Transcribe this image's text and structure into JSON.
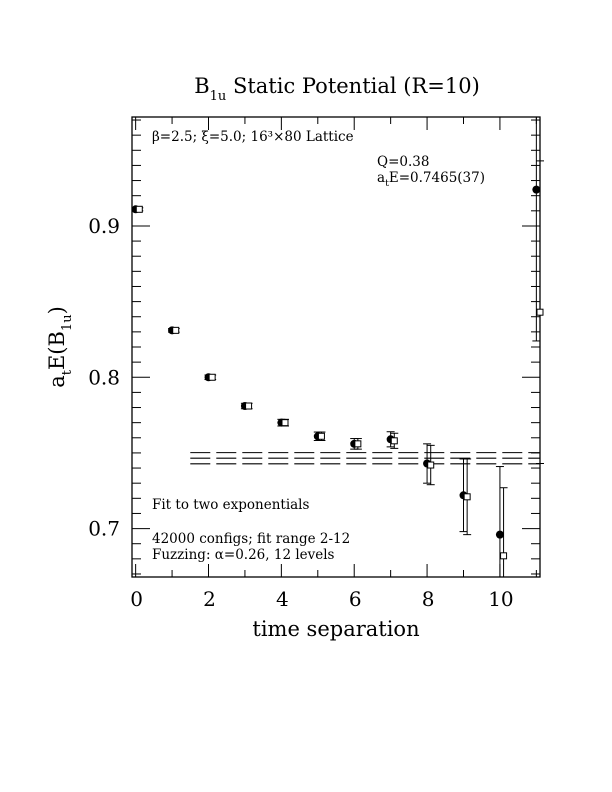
{
  "chart_data": {
    "type": "scatter",
    "title": "B",
    "title_sub": "1u",
    "title_rest": " Static Potential (R=10)",
    "xlabel": "time separation",
    "ylabel_main": "a",
    "ylabel_sub_t": "t",
    "ylabel_mid": "E(B",
    "ylabel_sub_1u": "1u",
    "ylabel_end": ")",
    "xlim": [
      -0.1,
      11.1
    ],
    "ylim": [
      0.668,
      0.972
    ],
    "x_ticks": [
      0,
      2,
      4,
      6,
      8,
      10
    ],
    "x_tick_labels": [
      "0",
      "2",
      "4",
      "6",
      "8",
      "10"
    ],
    "y_ticks": [
      0.7,
      0.8,
      0.9
    ],
    "y_tick_labels": [
      "0.7",
      "0.8",
      "0.9"
    ],
    "grid": false,
    "lattice_info": "β=2.5; ξ=5.0; 16³×80 Lattice",
    "fit_q": "Q=0.38",
    "fit_energy_main": "a",
    "fit_energy_sub": "t",
    "fit_energy_rest": "E=0.7465(37)",
    "fit_label": "Fit to two exponentials",
    "configs_label": "42000 configs; fit range 2-12",
    "fuzzing_label": "Fuzzing: α=0.26, 12 levels",
    "fit_band": {
      "center": 0.7465,
      "upper": 0.7502,
      "lower": 0.7428,
      "x_start": 1.5,
      "x_end": 11.1
    },
    "series": [
      {
        "marker": "filled-circle",
        "x": [
          0,
          1,
          2,
          3,
          4,
          5,
          6,
          7,
          8,
          9,
          10,
          11
        ],
        "y": [
          0.911,
          0.831,
          0.8,
          0.781,
          0.77,
          0.761,
          0.756,
          0.759,
          0.743,
          0.722,
          0.696,
          0.924
        ],
        "err": [
          0.001,
          0.0012,
          0.0015,
          0.0018,
          0.0022,
          0.0028,
          0.0035,
          0.005,
          0.013,
          0.024,
          0.045,
          0.1
        ]
      },
      {
        "marker": "open-square",
        "x": [
          0.1,
          1.1,
          2.1,
          3.1,
          4.1,
          5.1,
          6.1,
          7.1,
          8.1,
          9.1,
          10.1,
          11.1
        ],
        "y": [
          0.911,
          0.831,
          0.8,
          0.781,
          0.77,
          0.761,
          0.756,
          0.758,
          0.742,
          0.721,
          0.682,
          0.843
        ],
        "err": [
          0.001,
          0.0012,
          0.0015,
          0.0018,
          0.0022,
          0.0028,
          0.0035,
          0.005,
          0.013,
          0.025,
          0.045,
          0.1
        ]
      }
    ]
  }
}
